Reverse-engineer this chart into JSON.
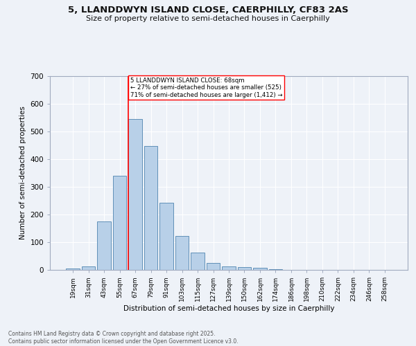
{
  "title": "5, LLANDDWYN ISLAND CLOSE, CAERPHILLY, CF83 2AS",
  "subtitle": "Size of property relative to semi-detached houses in Caerphilly",
  "xlabel": "Distribution of semi-detached houses by size in Caerphilly",
  "ylabel": "Number of semi-detached properties",
  "bar_color": "#b8d0e8",
  "bar_edge_color": "#6090b8",
  "background_color": "#eef2f8",
  "grid_color": "#ffffff",
  "categories": [
    "19sqm",
    "31sqm",
    "43sqm",
    "55sqm",
    "67sqm",
    "79sqm",
    "91sqm",
    "103sqm",
    "115sqm",
    "127sqm",
    "139sqm",
    "150sqm",
    "162sqm",
    "174sqm",
    "186sqm",
    "198sqm",
    "210sqm",
    "222sqm",
    "234sqm",
    "246sqm",
    "258sqm"
  ],
  "values": [
    5,
    12,
    175,
    340,
    545,
    447,
    242,
    122,
    62,
    25,
    12,
    10,
    7,
    2,
    0,
    0,
    0,
    0,
    0,
    0,
    0
  ],
  "ylim": [
    0,
    700
  ],
  "yticks": [
    0,
    100,
    200,
    300,
    400,
    500,
    600,
    700
  ],
  "property_line_x": 4,
  "annotation_text": "5 LLANDDWYN ISLAND CLOSE: 68sqm\n← 27% of semi-detached houses are smaller (525)\n71% of semi-detached houses are larger (1,412) →",
  "footer_line1": "Contains HM Land Registry data © Crown copyright and database right 2025.",
  "footer_line2": "Contains public sector information licensed under the Open Government Licence v3.0."
}
